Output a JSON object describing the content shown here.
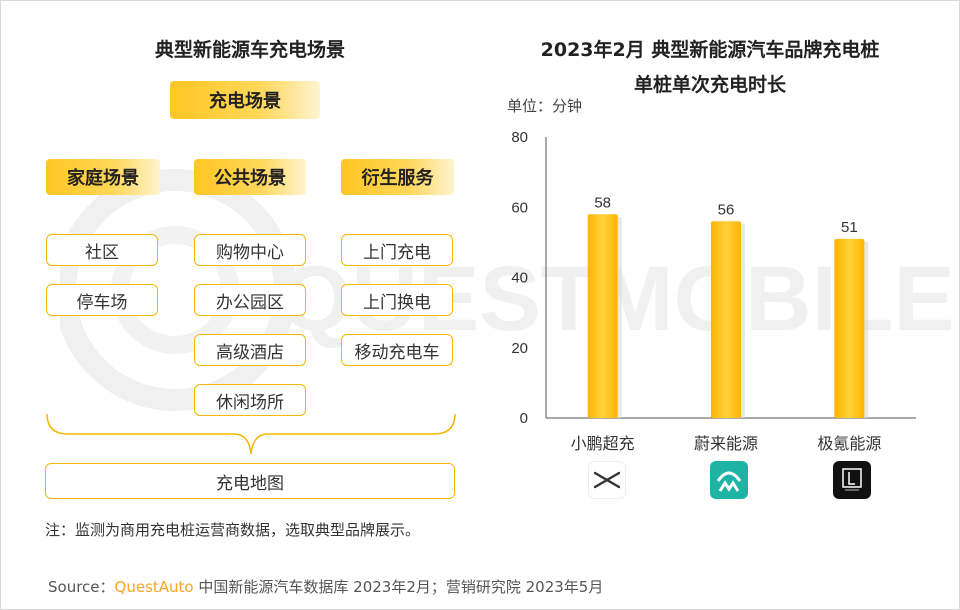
{
  "left": {
    "title": "典型新能源车充电场景",
    "main_header": "充电场景",
    "columns": [
      {
        "header": "家庭场景",
        "items": [
          "社区",
          "停车场"
        ]
      },
      {
        "header": "公共场景",
        "items": [
          "购物中心",
          "办公园区",
          "高级酒店",
          "休闲场所"
        ]
      },
      {
        "header": "衍生服务",
        "items": [
          "上门充电",
          "上门换电",
          "移动充电车"
        ]
      }
    ],
    "map_label": "充电地图"
  },
  "chart_data": {
    "type": "bar",
    "title_line1": "2023年2月 典型新能源汽车品牌充电桩",
    "title_line2": "单桩单次充电时长",
    "unit": "单位：分钟",
    "categories": [
      "小鹏超充",
      "蔚来能源",
      "极氪能源"
    ],
    "values": [
      58,
      56,
      51
    ],
    "y_ticks": [
      "0",
      "20",
      "40",
      "60",
      "80"
    ],
    "ylim": [
      0,
      80
    ],
    "bar_color": "#ffc61a",
    "grid": false
  },
  "logos": [
    {
      "name": "xpeng-logo-icon",
      "bg": "#ffffff"
    },
    {
      "name": "nio-logo-icon",
      "bg": "#1fb3a6"
    },
    {
      "name": "zeekr-logo-icon",
      "bg": "#111111"
    }
  ],
  "note": "注：监测为商用充电桩运营商数据，选取典型品牌展示。",
  "source": {
    "prefix": "Source：",
    "brand": "QuestAuto",
    "rest": " 中国新能源汽车数据库 2023年2月；营销研究院 2023年5月"
  },
  "watermark": "QUESTMOBILE"
}
